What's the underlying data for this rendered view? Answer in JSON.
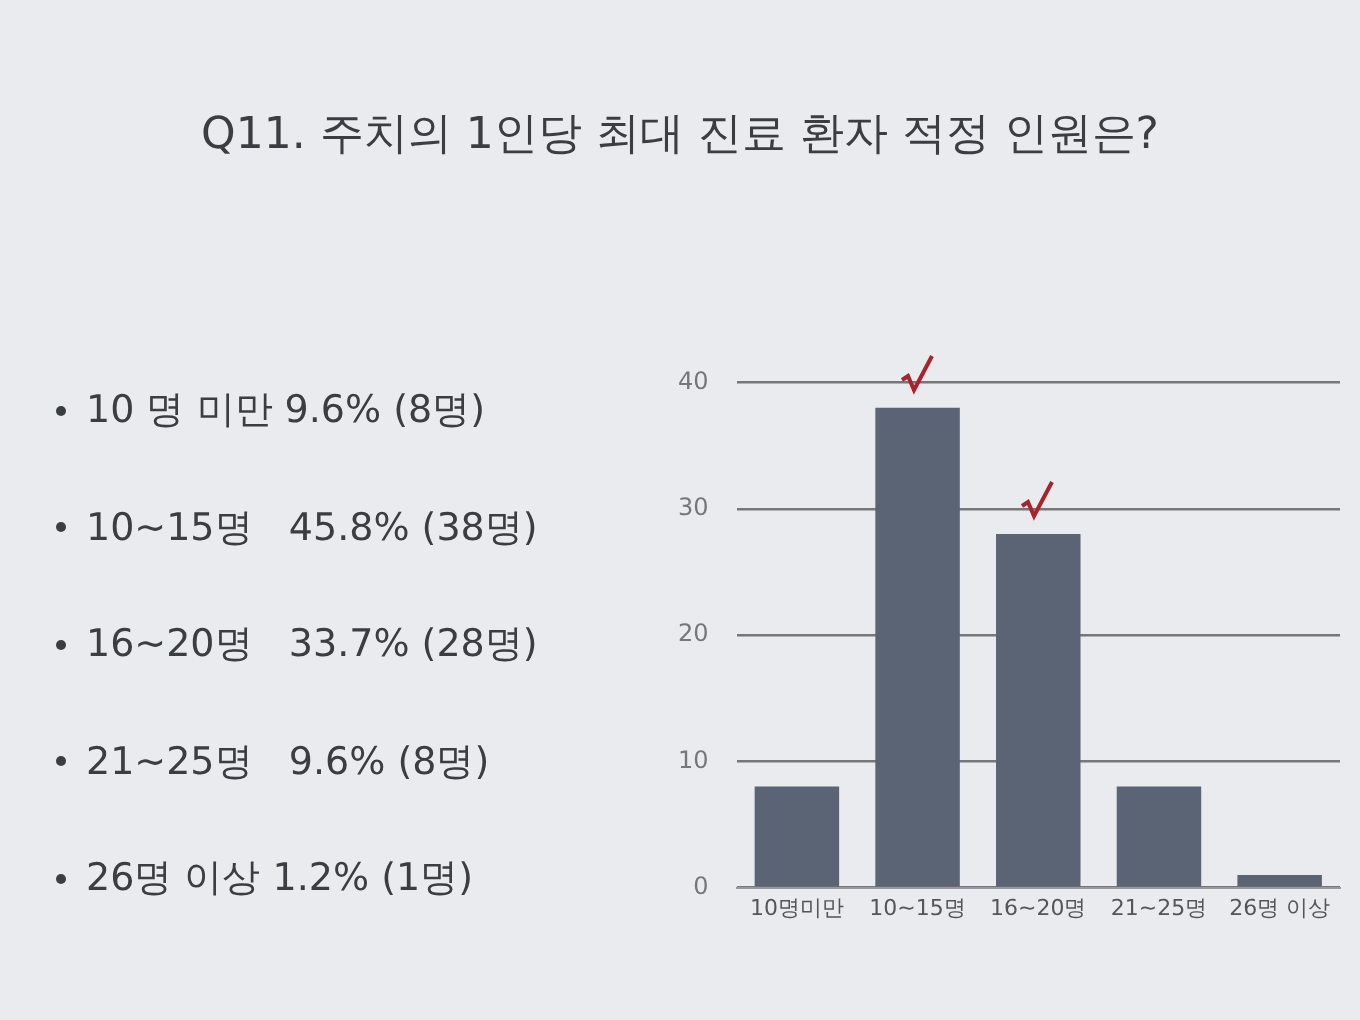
{
  "chart_data": {
    "type": "bar",
    "title": "Q11. 주치의 1인당 최대 진료 환자 적정 인원은?",
    "categories": [
      "10명미만",
      "10~15명",
      "16~20명",
      "21~25명",
      "26명 이상"
    ],
    "values": [
      8,
      38,
      28,
      8,
      1
    ],
    "color": "#5b6475",
    "ylim": [
      0,
      40
    ],
    "yticks": [
      0,
      10,
      20,
      30,
      40
    ],
    "grid": "y",
    "annotations": [
      "10 명 미만 9.6% (8명)",
      "10~15명   45.8% (38명)",
      "16~20명   33.7% (28명)",
      "21~25명   9.6% (8명)",
      "26명 이상 1.2% (1명)"
    ]
  }
}
